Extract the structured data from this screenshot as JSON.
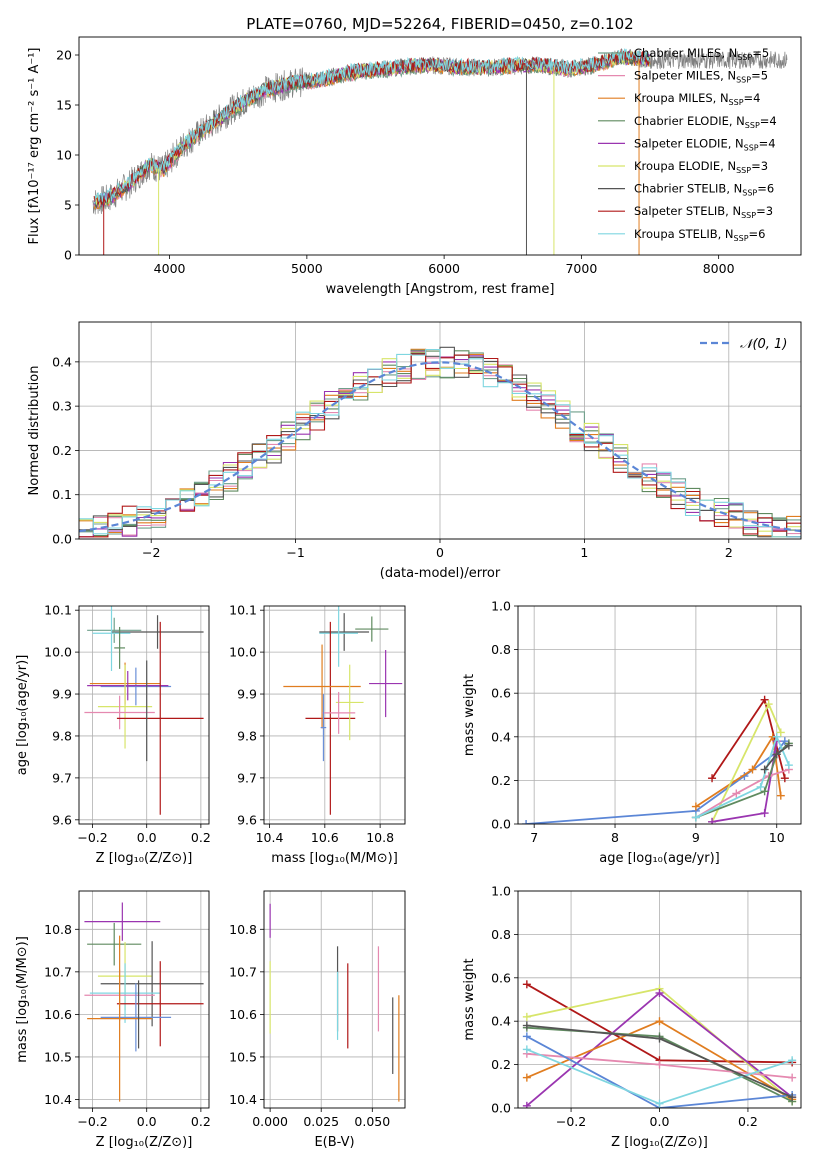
{
  "colors": {
    "chabrier_miles": "#6f9f8b",
    "salpeter_miles": "#e589b0",
    "kroupa_miles": "#e07d20",
    "chabrier_elodie": "#5f8a5f",
    "salpeter_elodie": "#9a35b0",
    "kroupa_elodie": "#d7e56a",
    "chabrier_stelib": "#555555",
    "salpeter_stelib": "#b01818",
    "kroupa_stelib": "#7fd6e0",
    "normal": "#5b86d6",
    "extra_blue": "#6a8fd8"
  },
  "chart_data": [
    {
      "id": "spectrum",
      "type": "line",
      "title": "PLATE=0760, MJD=52264, FIBERID=0450, z=0.102",
      "xlabel": "wavelength [Angstrom, rest frame]",
      "ylabel": "Flux [fλ10⁻¹⁷ erg cm⁻² s⁻¹ A⁻¹]",
      "xlim": [
        3340,
        8600
      ],
      "ylim": [
        0,
        21.8
      ],
      "xticks": [
        "4000",
        "5000",
        "6000",
        "7000",
        "8000"
      ],
      "yticks": [
        "0",
        "5",
        "10",
        "15",
        "20"
      ],
      "continuum": {
        "x": [
          3450,
          3550,
          3700,
          3850,
          3950,
          4100,
          4300,
          4500,
          4700,
          4900,
          5100,
          5300,
          5500,
          5700,
          5900,
          6100,
          6300,
          6500,
          6700,
          6900,
          7100,
          7300,
          7500
        ],
        "y": [
          5.3,
          5.6,
          7.0,
          9.0,
          8.5,
          11.0,
          13.0,
          15.0,
          16.5,
          17.2,
          17.5,
          18.2,
          18.5,
          18.8,
          19.0,
          18.8,
          18.7,
          18.9,
          19.0,
          18.6,
          19.0,
          19.8,
          19.5
        ]
      },
      "legend": [
        {
          "label": "Chabrier MILES, N",
          "sub": "SSP",
          "tail": "=5"
        },
        {
          "label": "Salpeter MILES, N",
          "sub": "SSP",
          "tail": "=5"
        },
        {
          "label": "Kroupa MILES, N",
          "sub": "SSP",
          "tail": "=4"
        },
        {
          "label": "Chabrier ELODIE, N",
          "sub": "SSP",
          "tail": "=4"
        },
        {
          "label": "Salpeter ELODIE, N",
          "sub": "SSP",
          "tail": "=4"
        },
        {
          "label": "Kroupa ELODIE, N",
          "sub": "SSP",
          "tail": "=3"
        },
        {
          "label": "Chabrier STELIB, N",
          "sub": "SSP",
          "tail": "=6"
        },
        {
          "label": "Salpeter STELIB, N",
          "sub": "SSP",
          "tail": "=3"
        },
        {
          "label": "Kroupa STELIB, N",
          "sub": "SSP",
          "tail": "=6"
        }
      ]
    },
    {
      "id": "hist",
      "type": "area",
      "xlabel": "(data-model)/error",
      "ylabel": "Normed distribution",
      "xlim": [
        -2.5,
        2.5
      ],
      "ylim": [
        0,
        0.49
      ],
      "xticks": [
        "−2",
        "−1",
        "0",
        "1",
        "2"
      ],
      "yticks": [
        "0.0",
        "0.1",
        "0.2",
        "0.3",
        "0.4"
      ],
      "legend_label": "𝒩(0, 1)",
      "bin_width": 0.1
    },
    {
      "id": "z_age",
      "type": "scatter",
      "xlabel": "Z [log₁₀(Z/Z⊙)]",
      "ylabel": "age  [log₁₀(age/yr)]",
      "xlim": [
        -0.25,
        0.23
      ],
      "ylim": [
        9.59,
        10.11
      ],
      "xticks": [
        "−0.2",
        "0.0",
        "0.2"
      ],
      "yticks": [
        "9.6",
        "9.7",
        "9.8",
        "9.9",
        "10.0",
        "10.1"
      ],
      "points": [
        {
          "s": "chabrier_stelib",
          "x": 0.04,
          "xe": 0.17,
          "y": 10.048,
          "ye": 0.04
        },
        {
          "s": "chabrier_miles",
          "x": -0.12,
          "xe": 0.1,
          "y": 10.052,
          "ye": 0.03
        },
        {
          "s": "kroupa_stelib",
          "x": -0.13,
          "xe": 0.07,
          "y": 10.045,
          "ye": 0.09
        },
        {
          "s": "chabrier_elodie",
          "x": -0.1,
          "xe": 0.02,
          "y": 10.01,
          "ye": 0.05
        },
        {
          "s": "extra_blue",
          "x": -0.04,
          "xe": 0.13,
          "y": 9.918,
          "ye": 0.045
        },
        {
          "s": "kroupa_miles",
          "x": -0.08,
          "xe": 0.13,
          "y": 9.925,
          "ye": 0.05
        },
        {
          "s": "salpeter_elodie",
          "x": -0.07,
          "xe": 0.15,
          "y": 9.92,
          "ye": 0.035
        },
        {
          "s": "kroupa_elodie",
          "x": -0.08,
          "xe": 0.1,
          "y": 9.87,
          "ye": 0.1
        },
        {
          "s": "salpeter_miles",
          "x": -0.1,
          "xe": 0.13,
          "y": 9.856,
          "ye": 0.04
        },
        {
          "s": "salpeter_stelib",
          "x": 0.05,
          "xe": 0.16,
          "y": 9.842,
          "ye": 0.23
        },
        {
          "s": "chabrier_stelib",
          "x": 0.0,
          "xe": 0.0,
          "y": 9.86,
          "ye": 0.12
        }
      ]
    },
    {
      "id": "mass_age",
      "type": "scatter",
      "xlabel": "mass [log₁₀(M/M⊙)]",
      "ylabel": "",
      "xlim": [
        10.38,
        10.89
      ],
      "ylim": [
        9.59,
        10.11
      ],
      "xticks": [
        "10.4",
        "10.6",
        "10.8"
      ],
      "yticks": [
        "9.6",
        "9.7",
        "9.8",
        "9.9",
        "10.0",
        "10.1"
      ],
      "points": [
        {
          "s": "chabrier_stelib",
          "x": 10.67,
          "xe": 0.09,
          "y": 10.048,
          "ye": 0.045
        },
        {
          "s": "chabrier_elodie",
          "x": 10.77,
          "xe": 0.06,
          "y": 10.055,
          "ye": 0.03
        },
        {
          "s": "kroupa_stelib",
          "x": 10.65,
          "xe": 0.07,
          "y": 10.045,
          "ye": 0.08
        },
        {
          "s": "salpeter_elodie",
          "x": 10.82,
          "xe": 0.06,
          "y": 9.925,
          "ye": 0.08
        },
        {
          "s": "salpeter_stelib",
          "x": 10.62,
          "xe": 0.09,
          "y": 9.842,
          "ye": 0.23
        },
        {
          "s": "kroupa_miles",
          "x": 10.59,
          "xe": 0.14,
          "y": 9.918,
          "ye": 0.1
        },
        {
          "s": "kroupa_elodie",
          "x": 10.69,
          "xe": 0.05,
          "y": 9.88,
          "ye": 0.09
        },
        {
          "s": "salpeter_miles",
          "x": 10.65,
          "xe": 0.06,
          "y": 9.855,
          "ye": 0.05
        },
        {
          "s": "extra_blue",
          "x": 10.595,
          "xe": 0.01,
          "y": 9.82,
          "ye": 0.08
        }
      ]
    },
    {
      "id": "weight_age",
      "type": "line",
      "xlabel": "age  [log₁₀(age/yr)]",
      "ylabel": "mass weight",
      "xlim": [
        6.8,
        10.3
      ],
      "ylim": [
        0,
        1.0
      ],
      "xticks": [
        "7",
        "8",
        "9",
        "10"
      ],
      "yticks": [
        "0.0",
        "0.2",
        "0.4",
        "0.6",
        "0.8",
        "1.0"
      ],
      "series": [
        {
          "s": "normal",
          "x": [
            6.9,
            9.0,
            9.6,
            10.0,
            10.1
          ],
          "y": [
            0.0,
            0.06,
            0.22,
            0.33,
            0.38
          ]
        },
        {
          "s": "salpeter_stelib",
          "x": [
            9.2,
            9.85,
            10.1
          ],
          "y": [
            0.21,
            0.57,
            0.21
          ]
        },
        {
          "s": "kroupa_miles",
          "x": [
            9.0,
            9.7,
            9.95,
            10.05
          ],
          "y": [
            0.08,
            0.25,
            0.4,
            0.13
          ]
        },
        {
          "s": "kroupa_elodie",
          "x": [
            9.2,
            9.9,
            10.05
          ],
          "y": [
            0.01,
            0.55,
            0.42
          ]
        },
        {
          "s": "salpeter_elodie",
          "x": [
            9.2,
            9.85,
            10.0
          ],
          "y": [
            0.01,
            0.05,
            0.38
          ]
        },
        {
          "s": "salpeter_miles",
          "x": [
            9.0,
            9.5,
            9.9,
            10.15
          ],
          "y": [
            0.03,
            0.14,
            0.22,
            0.25
          ]
        },
        {
          "s": "chabrier_elodie",
          "x": [
            9.0,
            9.85,
            10.0,
            10.15
          ],
          "y": [
            0.03,
            0.15,
            0.32,
            0.37
          ]
        },
        {
          "s": "kroupa_stelib",
          "x": [
            9.0,
            9.8,
            10.0,
            10.15
          ],
          "y": [
            0.03,
            0.17,
            0.4,
            0.27
          ]
        },
        {
          "s": "chabrier_stelib",
          "x": [
            9.85,
            10.0,
            10.15
          ],
          "y": [
            0.25,
            0.32,
            0.36
          ]
        }
      ]
    },
    {
      "id": "z_mass",
      "type": "scatter",
      "xlabel": "Z [log₁₀(Z/Z⊙)]",
      "ylabel": "mass [log₁₀(M/M⊙)]",
      "xlim": [
        -0.25,
        0.23
      ],
      "ylim": [
        10.38,
        10.89
      ],
      "xticks": [
        "−0.2",
        "0.0",
        "0.2"
      ],
      "yticks": [
        "10.4",
        "10.5",
        "10.6",
        "10.7",
        "10.8"
      ],
      "points": [
        {
          "s": "salpeter_elodie",
          "x": -0.09,
          "xe": 0.14,
          "y": 10.818,
          "ye": 0.045
        },
        {
          "s": "chabrier_elodie",
          "x": -0.12,
          "xe": 0.1,
          "y": 10.765,
          "ye": 0.05
        },
        {
          "s": "kroupa_elodie",
          "x": -0.08,
          "xe": 0.1,
          "y": 10.69,
          "ye": 0.08
        },
        {
          "s": "chabrier_stelib",
          "x": 0.02,
          "xe": 0.19,
          "y": 10.672,
          "ye": 0.1
        },
        {
          "s": "kroupa_stelib",
          "x": -0.08,
          "xe": 0.13,
          "y": 10.65,
          "ye": 0.07
        },
        {
          "s": "salpeter_miles",
          "x": -0.1,
          "xe": 0.13,
          "y": 10.645,
          "ye": 0.06
        },
        {
          "s": "salpeter_stelib",
          "x": 0.05,
          "xe": 0.16,
          "y": 10.625,
          "ye": 0.1
        },
        {
          "s": "extra_blue",
          "x": -0.04,
          "xe": 0.13,
          "y": 10.593,
          "ye": 0.08
        },
        {
          "s": "kroupa_miles",
          "x": -0.1,
          "xe": 0.12,
          "y": 10.59,
          "ye": 0.195
        },
        {
          "s": "chabrier_stelib",
          "x": -0.03,
          "xe": 0.0,
          "y": 10.6,
          "ye": 0.08
        }
      ]
    },
    {
      "id": "ebv_mass",
      "type": "scatter",
      "xlabel": "E(B-V)",
      "ylabel": "",
      "xlim": [
        -0.003,
        0.066
      ],
      "ylim": [
        10.38,
        10.89
      ],
      "xticks": [
        "0.000",
        "0.025",
        "0.050"
      ],
      "yticks": [
        "10.4",
        "10.5",
        "10.6",
        "10.7",
        "10.8"
      ],
      "points": [
        {
          "s": "salpeter_elodie",
          "x": 0.0,
          "xe": 0,
          "y": 10.82,
          "ye": 0.04
        },
        {
          "s": "kroupa_elodie",
          "x": 0.0,
          "xe": 0,
          "y": 10.64,
          "ye": 0.085
        },
        {
          "s": "chabrier_stelib",
          "x": 0.033,
          "xe": 0,
          "y": 10.66,
          "ye": 0.1
        },
        {
          "s": "kroupa_stelib",
          "x": 0.033,
          "xe": 0,
          "y": 10.62,
          "ye": 0.08
        },
        {
          "s": "salpeter_stelib",
          "x": 0.038,
          "xe": 0,
          "y": 10.62,
          "ye": 0.1
        },
        {
          "s": "salpeter_miles",
          "x": 0.053,
          "xe": 0,
          "y": 10.66,
          "ye": 0.1
        },
        {
          "s": "chabrier_stelib",
          "x": 0.06,
          "xe": 0,
          "y": 10.55,
          "ye": 0.09
        },
        {
          "s": "kroupa_miles",
          "x": 0.063,
          "xe": 0,
          "y": 10.52,
          "ye": 0.125
        }
      ]
    },
    {
      "id": "weight_z",
      "type": "line",
      "xlabel": "Z [log₁₀(Z/Z⊙)]",
      "ylabel": "mass weight",
      "xlim": [
        -0.32,
        0.32
      ],
      "ylim": [
        0,
        1.0
      ],
      "xticks": [
        "−0.2",
        "0.0",
        "0.2"
      ],
      "yticks": [
        "0.0",
        "0.2",
        "0.4",
        "0.6",
        "0.8",
        "1.0"
      ],
      "series": [
        {
          "s": "salpeter_stelib",
          "x": [
            -0.3,
            0.0,
            0.3
          ],
          "y": [
            0.57,
            0.22,
            0.21
          ]
        },
        {
          "s": "kroupa_elodie",
          "x": [
            -0.3,
            0.0,
            0.3
          ],
          "y": [
            0.42,
            0.55,
            0.03
          ]
        },
        {
          "s": "salpeter_elodie",
          "x": [
            -0.3,
            0.0,
            0.3
          ],
          "y": [
            0.01,
            0.53,
            0.05
          ]
        },
        {
          "s": "kroupa_miles",
          "x": [
            -0.3,
            0.0,
            0.3
          ],
          "y": [
            0.14,
            0.4,
            0.04
          ]
        },
        {
          "s": "chabrier_elodie",
          "x": [
            -0.3,
            0.0,
            0.3
          ],
          "y": [
            0.37,
            0.33,
            0.03
          ]
        },
        {
          "s": "salpeter_miles",
          "x": [
            -0.3,
            0.0,
            0.3
          ],
          "y": [
            0.25,
            0.2,
            0.14
          ]
        },
        {
          "s": "normal",
          "x": [
            -0.3,
            0.0,
            0.3
          ],
          "y": [
            0.33,
            0.0,
            0.06
          ]
        },
        {
          "s": "kroupa_stelib",
          "x": [
            -0.3,
            0.0,
            0.3
          ],
          "y": [
            0.27,
            0.02,
            0.22
          ]
        },
        {
          "s": "chabrier_stelib",
          "x": [
            -0.3,
            0.0,
            0.3
          ],
          "y": [
            0.38,
            0.32,
            0.05
          ]
        }
      ]
    }
  ]
}
